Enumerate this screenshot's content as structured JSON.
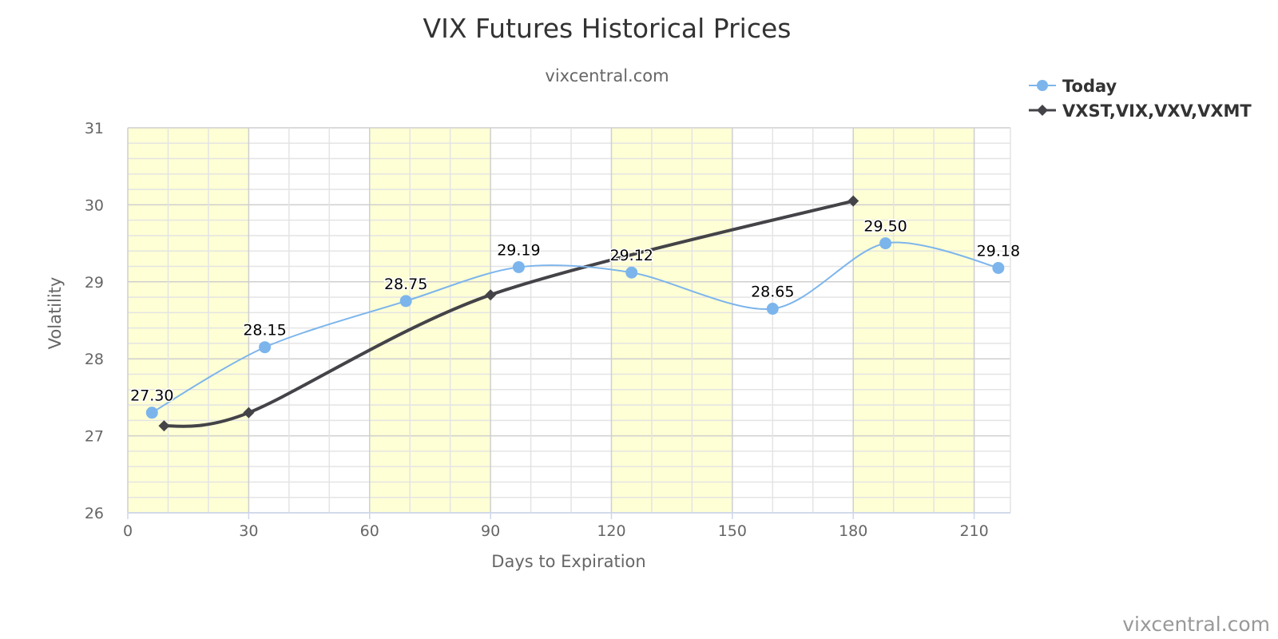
{
  "chart_data": {
    "type": "line",
    "title": "VIX Futures Historical Prices",
    "subtitle": "vixcentral.com",
    "xlabel": "Days to Expiration",
    "ylabel": "Volatility",
    "xlim": [
      0,
      219
    ],
    "ylim": [
      26,
      31
    ],
    "x_ticks": [
      0,
      30,
      60,
      90,
      120,
      150,
      180,
      210
    ],
    "y_ticks": [
      26,
      27,
      28,
      29,
      30,
      31
    ],
    "grid": true,
    "shaded_x_bands": [
      [
        0,
        30
      ],
      [
        60,
        90
      ],
      [
        120,
        150
      ],
      [
        180,
        210
      ]
    ],
    "legend_position": "top-right",
    "series": [
      {
        "name": "Today",
        "marker": "circle",
        "color": "#7cb5ec",
        "x": [
          6,
          34,
          69,
          97,
          125,
          160,
          188,
          216
        ],
        "y": [
          27.3,
          28.15,
          28.75,
          29.19,
          29.12,
          28.65,
          29.5,
          29.18
        ],
        "labels": [
          "27.30",
          "28.15",
          "28.75",
          "29.19",
          "29.12",
          "28.65",
          "29.50",
          "29.18"
        ]
      },
      {
        "name": "VXST,VIX,VXV,VXMT",
        "marker": "diamond",
        "color": "#434348",
        "x": [
          9,
          30,
          90,
          180
        ],
        "y": [
          27.13,
          27.3,
          28.83,
          30.05
        ]
      }
    ],
    "credit": "vixcentral.com"
  }
}
